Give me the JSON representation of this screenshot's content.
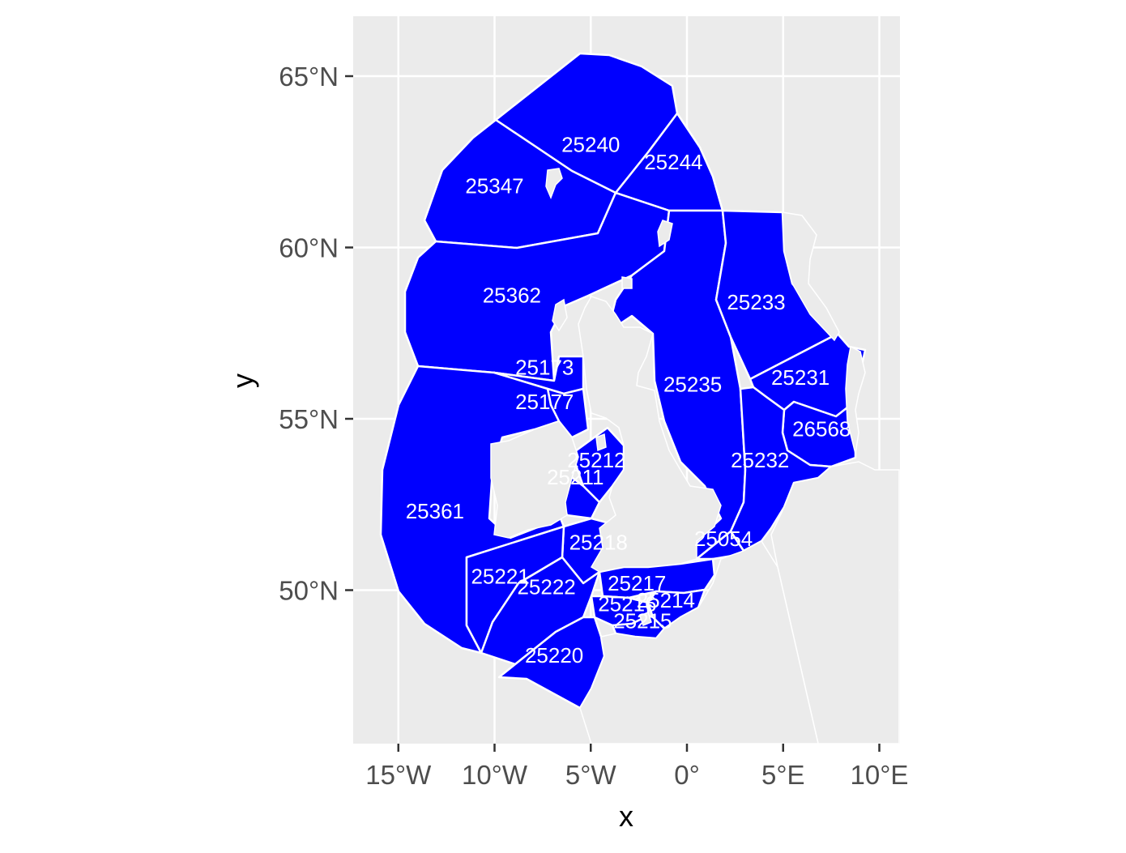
{
  "colors": {
    "panel_background": "#ebebeb",
    "gridline": "#ffffff",
    "zone_fill": "#0000ff",
    "zone_border": "#ffffff",
    "land": "#ebebeb",
    "axis_text": "#4d4d4d"
  },
  "axes": {
    "x_title": "x",
    "y_title": "y",
    "x_ticks": [
      "15°W",
      "10°W",
      "5°W",
      "0°",
      "5°E",
      "10°E"
    ],
    "x_values": [
      -15,
      -10,
      -5,
      0,
      5,
      10
    ],
    "y_ticks": [
      "65°N",
      "60°N",
      "55°N",
      "50°N"
    ],
    "y_values": [
      65,
      60,
      55,
      50
    ],
    "x_range": [
      -17.4,
      11.1
    ],
    "y_range": [
      45.8,
      66.8
    ]
  },
  "zones": [
    {
      "id": "25240",
      "lon": -5.0,
      "lat": 63.0
    },
    {
      "id": "25244",
      "lon": -0.7,
      "lat": 62.5
    },
    {
      "id": "25347",
      "lon": -10.0,
      "lat": 61.8
    },
    {
      "id": "25362",
      "lon": -9.1,
      "lat": 58.6
    },
    {
      "id": "25233",
      "lon": 3.6,
      "lat": 58.4
    },
    {
      "id": "25173",
      "lon": -7.4,
      "lat": 56.5
    },
    {
      "id": "25231",
      "lon": 5.9,
      "lat": 56.2
    },
    {
      "id": "25235",
      "lon": 0.3,
      "lat": 56.0
    },
    {
      "id": "25177",
      "lon": -7.4,
      "lat": 55.5
    },
    {
      "id": "26568",
      "lon": 7.0,
      "lat": 54.7
    },
    {
      "id": "25232",
      "lon": 3.8,
      "lat": 53.8
    },
    {
      "id": "25212",
      "lon": -4.7,
      "lat": 53.8
    },
    {
      "id": "25211",
      "lon": -5.8,
      "lat": 53.3
    },
    {
      "id": "25361",
      "lon": -13.1,
      "lat": 52.3
    },
    {
      "id": "25218",
      "lon": -4.6,
      "lat": 51.4
    },
    {
      "id": "25054",
      "lon": 1.9,
      "lat": 51.5
    },
    {
      "id": "25221",
      "lon": -9.7,
      "lat": 50.4
    },
    {
      "id": "25217",
      "lon": -2.6,
      "lat": 50.2
    },
    {
      "id": "25222",
      "lon": -7.3,
      "lat": 50.1
    },
    {
      "id": "25214",
      "lon": -1.1,
      "lat": 49.7
    },
    {
      "id": "25216",
      "lon": -3.1,
      "lat": 49.6
    },
    {
      "id": "25215",
      "lon": -2.3,
      "lat": 49.1
    },
    {
      "id": "25220",
      "lon": -6.9,
      "lat": 48.1
    }
  ]
}
